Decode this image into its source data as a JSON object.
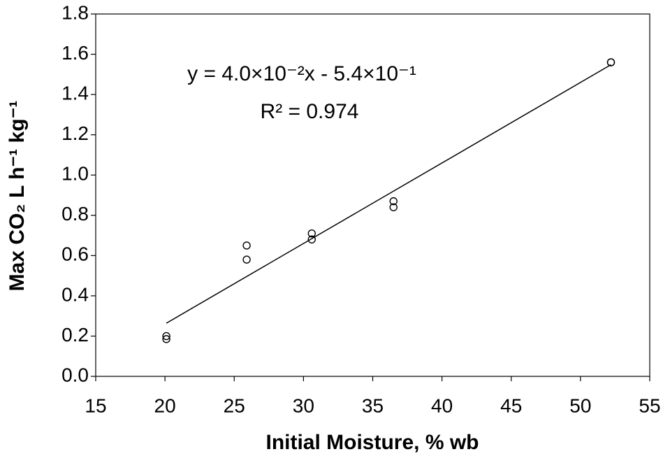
{
  "chart_data": {
    "type": "scatter",
    "x_label": "Initial Moisture, % wb",
    "y_label": "Max CO₂ L h⁻¹ kg⁻¹",
    "annotations": [
      "y = 4.0×10⁻²x - 5.4×10⁻¹",
      "R² = 0.974"
    ],
    "xlim": [
      15,
      55
    ],
    "xticks": [
      15,
      20,
      25,
      30,
      35,
      40,
      45,
      50,
      55
    ],
    "ylim": [
      0,
      1.8
    ],
    "yticks": [
      {
        "value": 0,
        "label": "0.0"
      },
      0.2,
      0.4,
      0.6,
      0.8,
      {
        "value": 1,
        "label": "1.0"
      },
      1.2,
      1.4,
      1.6,
      1.8
    ],
    "series": [
      {
        "color": "#000000",
        "x": [
          20.1,
          20.1,
          25.9,
          25.9,
          30.6,
          30.6,
          36.5,
          36.5,
          52.2,
          52.2
        ],
        "values": [
          0.2,
          0.185,
          0.65,
          0.58,
          0.71,
          0.68,
          0.87,
          0.84,
          1.56,
          1.56
        ]
      }
    ],
    "trendline": {
      "color": "#000000",
      "x": [
        20.1,
        52.2
      ],
      "values": [
        0.264,
        1.548
      ]
    }
  }
}
